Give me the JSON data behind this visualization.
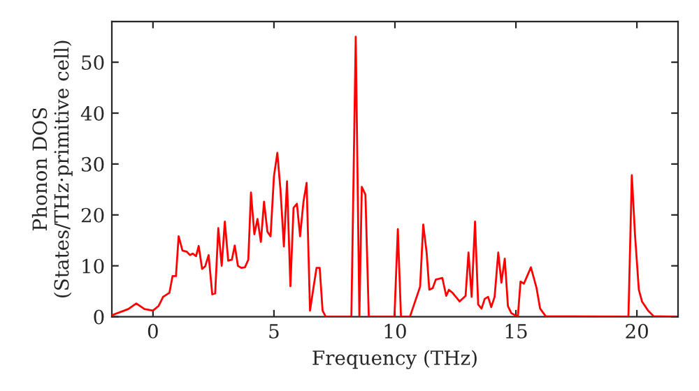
{
  "chart_data": {
    "type": "line",
    "xlabel": "Frequency (THz)",
    "ylabel": "Phonon DOS\n(States/THz·primitive cell)",
    "xlim": [
      -1.7,
      21.7
    ],
    "ylim": [
      0,
      58
    ],
    "xticks": [
      0,
      5,
      10,
      15,
      20
    ],
    "yticks": [
      0,
      10,
      20,
      30,
      40,
      50
    ],
    "grid": false,
    "legend": false,
    "series": [
      {
        "color": "#ff0000",
        "x": [
          -1.7,
          -1.02,
          -0.69,
          -0.35,
          0,
          0.23,
          0.42,
          0.68,
          0.81,
          0.95,
          1.06,
          1.22,
          1.39,
          1.53,
          1.64,
          1.78,
          1.89,
          2.03,
          2.16,
          2.3,
          2.45,
          2.57,
          2.7,
          2.84,
          2.97,
          3.11,
          3.26,
          3.38,
          3.51,
          3.65,
          3.8,
          3.94,
          4.05,
          4.19,
          4.32,
          4.46,
          4.59,
          4.73,
          4.86,
          5.0,
          5.14,
          5.27,
          5.41,
          5.54,
          5.68,
          5.81,
          5.95,
          6.08,
          6.22,
          6.35,
          6.49,
          6.62,
          6.76,
          6.89,
          7.01,
          7.14,
          8.2,
          8.38,
          8.53,
          8.63,
          8.78,
          8.92,
          9.98,
          10.12,
          10.25,
          10.62,
          11.04,
          11.17,
          11.31,
          11.42,
          11.56,
          11.69,
          11.96,
          12.12,
          12.23,
          12.38,
          12.67,
          12.92,
          13.04,
          13.17,
          13.31,
          13.44,
          13.58,
          13.71,
          13.85,
          13.98,
          14.12,
          14.27,
          14.4,
          14.54,
          14.67,
          14.81,
          15.08,
          15.19,
          15.33,
          15.62,
          15.85,
          16.0,
          16.23,
          19.65,
          19.79,
          19.92,
          20.08,
          20.21,
          20.46,
          20.69,
          21.6
        ],
        "values": [
          0.3,
          1.5,
          2.6,
          1.5,
          1.2,
          2.1,
          3.9,
          4.7,
          8.0,
          8.0,
          15.8,
          13.0,
          12.8,
          12.1,
          12.4,
          11.9,
          13.9,
          9.4,
          9.9,
          12.1,
          4.4,
          4.6,
          17.4,
          10.0,
          18.7,
          11.0,
          11.2,
          14.0,
          10.0,
          9.6,
          9.7,
          11.2,
          24.4,
          16.2,
          19.2,
          14.7,
          22.6,
          16.7,
          15.8,
          27.6,
          32.2,
          24.9,
          13.8,
          26.6,
          6.0,
          21.4,
          22.2,
          15.8,
          22.6,
          26.3,
          1.2,
          5.3,
          9.6,
          9.6,
          1.2,
          0,
          0,
          55.0,
          0,
          25.5,
          24.0,
          0,
          0,
          17.2,
          0,
          0,
          5.9,
          18.1,
          12.6,
          5.3,
          5.6,
          7.3,
          7.6,
          4.1,
          5.3,
          4.7,
          3.0,
          4.1,
          12.6,
          3.9,
          18.7,
          2.4,
          1.6,
          3.5,
          3.9,
          1.9,
          3.9,
          12.6,
          6.7,
          11.4,
          2.1,
          0.7,
          0,
          6.9,
          6.5,
          9.7,
          5.7,
          1.6,
          0.1,
          0,
          27.8,
          16.2,
          5.3,
          3.0,
          1.2,
          0.1,
          0
        ]
      }
    ]
  }
}
